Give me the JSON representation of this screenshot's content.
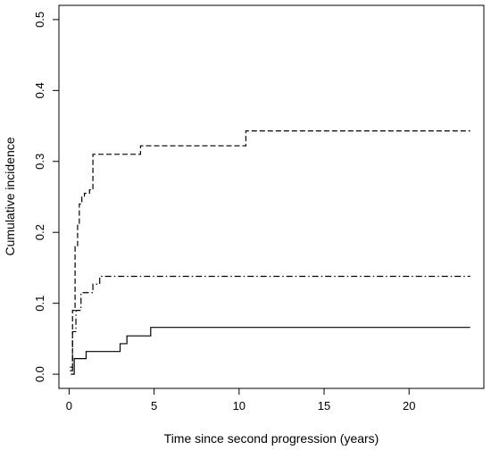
{
  "chart_data": {
    "type": "line",
    "title": "",
    "xlabel": "Time since second progression (years)",
    "ylabel": "Cumulative incidence",
    "xlim": [
      -0.6,
      24.4
    ],
    "ylim": [
      -0.02,
      0.52
    ],
    "xticks": [
      0,
      5,
      10,
      15,
      20
    ],
    "yticks": [
      0.0,
      0.1,
      0.2,
      0.3,
      0.4,
      0.5
    ],
    "xtick_labels": [
      "0",
      "5",
      "10",
      "15",
      "20"
    ],
    "ytick_labels": [
      "0.0",
      "0.1",
      "0.2",
      "0.3",
      "0.4",
      "0.5"
    ],
    "grid": false,
    "legend": "none",
    "series": [
      {
        "line_style": "solid",
        "x": [
          0.1,
          0.3,
          0.7,
          1.0,
          2.2,
          3.0,
          3.4,
          4.2,
          4.8,
          23.6
        ],
        "y": [
          0.0,
          0.022,
          0.022,
          0.032,
          0.032,
          0.043,
          0.054,
          0.054,
          0.066,
          0.066
        ]
      },
      {
        "line_style": "dashed",
        "x": [
          0.05,
          0.2,
          0.35,
          0.5,
          0.6,
          0.75,
          0.9,
          1.2,
          1.4,
          3.6,
          4.2,
          9.1,
          10.4,
          23.6
        ],
        "y": [
          0.01,
          0.09,
          0.18,
          0.21,
          0.24,
          0.25,
          0.255,
          0.26,
          0.31,
          0.31,
          0.322,
          0.322,
          0.343,
          0.343
        ]
      },
      {
        "line_style": "dashdot",
        "x": [
          0.05,
          0.2,
          0.4,
          0.7,
          1.1,
          1.4,
          1.8,
          23.6
        ],
        "y": [
          0.005,
          0.06,
          0.09,
          0.115,
          0.115,
          0.127,
          0.138,
          0.138
        ]
      }
    ]
  }
}
